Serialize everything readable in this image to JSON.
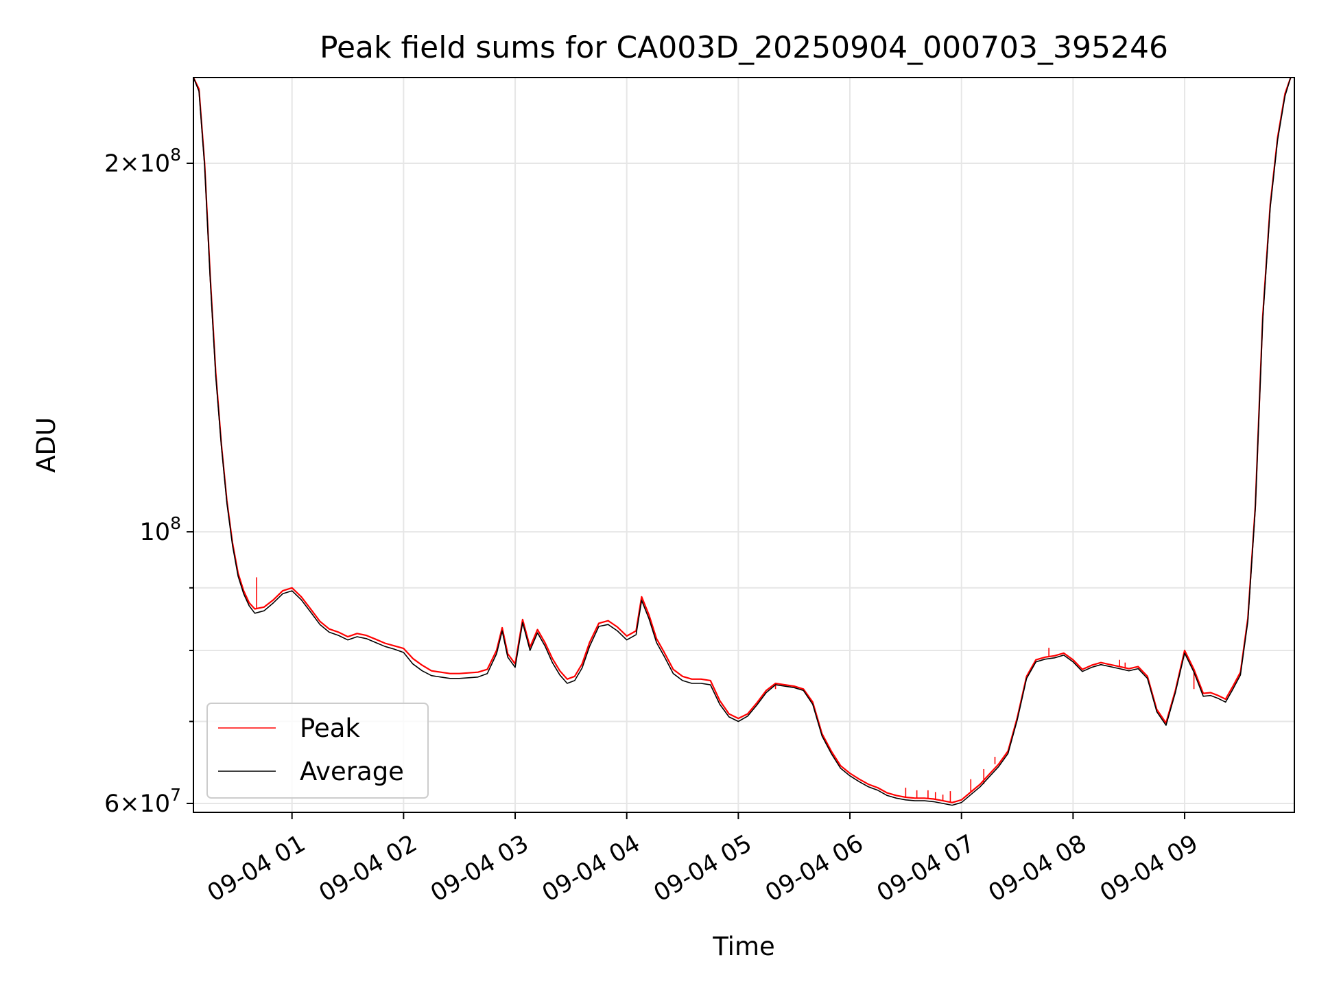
{
  "chart_data": {
    "type": "line",
    "title": "Peak field sums for CA003D_20250904_000703_395246",
    "xlabel": "Time",
    "ylabel": "ADU",
    "x_axis": {
      "type": "time",
      "range": [
        "2025-09-04 00:07",
        "2025-09-04 09:59"
      ],
      "ticks": [
        {
          "value": "2025-09-04 01:00",
          "label": "09-04 01"
        },
        {
          "value": "2025-09-04 02:00",
          "label": "09-04 02"
        },
        {
          "value": "2025-09-04 03:00",
          "label": "09-04 03"
        },
        {
          "value": "2025-09-04 04:00",
          "label": "09-04 04"
        },
        {
          "value": "2025-09-04 05:00",
          "label": "09-04 05"
        },
        {
          "value": "2025-09-04 06:00",
          "label": "09-04 06"
        },
        {
          "value": "2025-09-04 07:00",
          "label": "09-04 07"
        },
        {
          "value": "2025-09-04 08:00",
          "label": "09-04 08"
        },
        {
          "value": "2025-09-04 09:00",
          "label": "09-04 09"
        }
      ]
    },
    "y_axis": {
      "scale": "log",
      "range": [
        59000000,
        235000000
      ],
      "major_ticks": [
        {
          "value": 60000000,
          "label_mantissa": "6",
          "label_exponent": "7"
        },
        {
          "value": 100000000,
          "label_mantissa": "",
          "label_exponent": "8"
        },
        {
          "value": 200000000,
          "label_mantissa": "2",
          "label_exponent": "8"
        }
      ],
      "minor_ticks": [
        70000000,
        80000000,
        90000000
      ]
    },
    "grid": true,
    "legend_position": "lower-left",
    "series": [
      {
        "name": "Peak",
        "color": "#ff0000",
        "x": [
          "2025-09-04 00:07",
          "2025-09-04 00:10",
          "2025-09-04 00:13",
          "2025-09-04 00:16",
          "2025-09-04 00:19",
          "2025-09-04 00:22",
          "2025-09-04 00:25",
          "2025-09-04 00:28",
          "2025-09-04 00:31",
          "2025-09-04 00:34",
          "2025-09-04 00:37",
          "2025-09-04 00:40",
          "2025-09-04 00:45",
          "2025-09-04 00:50",
          "2025-09-04 00:55",
          "2025-09-04 01:00",
          "2025-09-04 01:05",
          "2025-09-04 01:10",
          "2025-09-04 01:15",
          "2025-09-04 01:20",
          "2025-09-04 01:25",
          "2025-09-04 01:30",
          "2025-09-04 01:35",
          "2025-09-04 01:40",
          "2025-09-04 01:45",
          "2025-09-04 01:50",
          "2025-09-04 01:55",
          "2025-09-04 02:00",
          "2025-09-04 02:05",
          "2025-09-04 02:10",
          "2025-09-04 02:15",
          "2025-09-04 02:20",
          "2025-09-04 02:25",
          "2025-09-04 02:30",
          "2025-09-04 02:35",
          "2025-09-04 02:40",
          "2025-09-04 02:45",
          "2025-09-04 02:50",
          "2025-09-04 02:53",
          "2025-09-04 02:56",
          "2025-09-04 03:00",
          "2025-09-04 03:04",
          "2025-09-04 03:08",
          "2025-09-04 03:12",
          "2025-09-04 03:16",
          "2025-09-04 03:20",
          "2025-09-04 03:24",
          "2025-09-04 03:28",
          "2025-09-04 03:32",
          "2025-09-04 03:36",
          "2025-09-04 03:40",
          "2025-09-04 03:45",
          "2025-09-04 03:50",
          "2025-09-04 03:55",
          "2025-09-04 04:00",
          "2025-09-04 04:05",
          "2025-09-04 04:08",
          "2025-09-04 04:12",
          "2025-09-04 04:16",
          "2025-09-04 04:20",
          "2025-09-04 04:25",
          "2025-09-04 04:30",
          "2025-09-04 04:35",
          "2025-09-04 04:40",
          "2025-09-04 04:45",
          "2025-09-04 04:50",
          "2025-09-04 04:55",
          "2025-09-04 05:00",
          "2025-09-04 05:05",
          "2025-09-04 05:10",
          "2025-09-04 05:15",
          "2025-09-04 05:20",
          "2025-09-04 05:25",
          "2025-09-04 05:30",
          "2025-09-04 05:35",
          "2025-09-04 05:40",
          "2025-09-04 05:45",
          "2025-09-04 05:50",
          "2025-09-04 05:55",
          "2025-09-04 06:00",
          "2025-09-04 06:05",
          "2025-09-04 06:10",
          "2025-09-04 06:15",
          "2025-09-04 06:20",
          "2025-09-04 06:25",
          "2025-09-04 06:30",
          "2025-09-04 06:35",
          "2025-09-04 06:40",
          "2025-09-04 06:45",
          "2025-09-04 06:50",
          "2025-09-04 06:55",
          "2025-09-04 07:00",
          "2025-09-04 07:05",
          "2025-09-04 07:10",
          "2025-09-04 07:15",
          "2025-09-04 07:20",
          "2025-09-04 07:25",
          "2025-09-04 07:30",
          "2025-09-04 07:35",
          "2025-09-04 07:40",
          "2025-09-04 07:45",
          "2025-09-04 07:50",
          "2025-09-04 07:55",
          "2025-09-04 08:00",
          "2025-09-04 08:05",
          "2025-09-04 08:10",
          "2025-09-04 08:15",
          "2025-09-04 08:20",
          "2025-09-04 08:25",
          "2025-09-04 08:30",
          "2025-09-04 08:35",
          "2025-09-04 08:40",
          "2025-09-04 08:45",
          "2025-09-04 08:50",
          "2025-09-04 08:55",
          "2025-09-04 09:00",
          "2025-09-04 09:05",
          "2025-09-04 09:10",
          "2025-09-04 09:14",
          "2025-09-04 09:18",
          "2025-09-04 09:22",
          "2025-09-04 09:26",
          "2025-09-04 09:30",
          "2025-09-04 09:34",
          "2025-09-04 09:38",
          "2025-09-04 09:42",
          "2025-09-04 09:46",
          "2025-09-04 09:50",
          "2025-09-04 09:54",
          "2025-09-04 09:57"
        ],
        "values": [
          235000000,
          230000000,
          200000000,
          162000000,
          135000000,
          118000000,
          106000000,
          98000000,
          92500000,
          89500000,
          87500000,
          86500000,
          86800000,
          88000000,
          89500000,
          90000000,
          88500000,
          86500000,
          84500000,
          83300000,
          82800000,
          82100000,
          82600000,
          82300000,
          81700000,
          81100000,
          80700000,
          80300000,
          78800000,
          77800000,
          77000000,
          76800000,
          76600000,
          76600000,
          76700000,
          76800000,
          77200000,
          80000000,
          83500000,
          79500000,
          78000000,
          84800000,
          80500000,
          83200000,
          81200000,
          78800000,
          77000000,
          75800000,
          76200000,
          78000000,
          81200000,
          84200000,
          84600000,
          83600000,
          82200000,
          83000000,
          88500000,
          85500000,
          81800000,
          79800000,
          77200000,
          76200000,
          75800000,
          75800000,
          75600000,
          72800000,
          71000000,
          70400000,
          71000000,
          72500000,
          74200000,
          75200000,
          75000000,
          74800000,
          74400000,
          72600000,
          68400000,
          66200000,
          64400000,
          63500000,
          62800000,
          62200000,
          61800000,
          61200000,
          60900000,
          60700000,
          60600000,
          60600000,
          60500000,
          60300000,
          60100000,
          60400000,
          61300000,
          62200000,
          63400000,
          64600000,
          66200000,
          70500000,
          76200000,
          78600000,
          79000000,
          79200000,
          79600000,
          78600000,
          77200000,
          77800000,
          78200000,
          77900000,
          77600000,
          77300000,
          77600000,
          76200000,
          71600000,
          69800000,
          74200000,
          80000000,
          77200000,
          73800000,
          73900000,
          73500000,
          73000000,
          74800000,
          76800000,
          85000000,
          105000000,
          150000000,
          185000000,
          210000000,
          228000000,
          235000000
        ],
        "spikes": [
          {
            "x": "2025-09-04 00:41",
            "value": 91800000
          },
          {
            "x": "2025-09-04 05:20",
            "value": 74500000
          },
          {
            "x": "2025-09-04 06:30",
            "value": 61800000
          },
          {
            "x": "2025-09-04 06:36",
            "value": 61500000
          },
          {
            "x": "2025-09-04 06:42",
            "value": 61500000
          },
          {
            "x": "2025-09-04 06:46",
            "value": 61300000
          },
          {
            "x": "2025-09-04 06:50",
            "value": 61000000
          },
          {
            "x": "2025-09-04 06:54",
            "value": 61400000
          },
          {
            "x": "2025-09-04 07:05",
            "value": 62800000
          },
          {
            "x": "2025-09-04 07:12",
            "value": 64000000
          },
          {
            "x": "2025-09-04 07:18",
            "value": 65500000
          },
          {
            "x": "2025-09-04 07:47",
            "value": 80400000
          },
          {
            "x": "2025-09-04 08:25",
            "value": 78600000
          },
          {
            "x": "2025-09-04 08:28",
            "value": 78200000
          },
          {
            "x": "2025-09-04 09:05",
            "value": 74500000
          }
        ]
      },
      {
        "name": "Average",
        "color": "#000000",
        "x": [
          "2025-09-04 00:07",
          "2025-09-04 00:10",
          "2025-09-04 00:13",
          "2025-09-04 00:16",
          "2025-09-04 00:19",
          "2025-09-04 00:22",
          "2025-09-04 00:25",
          "2025-09-04 00:28",
          "2025-09-04 00:31",
          "2025-09-04 00:34",
          "2025-09-04 00:37",
          "2025-09-04 00:40",
          "2025-09-04 00:45",
          "2025-09-04 00:50",
          "2025-09-04 00:55",
          "2025-09-04 01:00",
          "2025-09-04 01:05",
          "2025-09-04 01:10",
          "2025-09-04 01:15",
          "2025-09-04 01:20",
          "2025-09-04 01:25",
          "2025-09-04 01:30",
          "2025-09-04 01:35",
          "2025-09-04 01:40",
          "2025-09-04 01:45",
          "2025-09-04 01:50",
          "2025-09-04 01:55",
          "2025-09-04 02:00",
          "2025-09-04 02:05",
          "2025-09-04 02:10",
          "2025-09-04 02:15",
          "2025-09-04 02:20",
          "2025-09-04 02:25",
          "2025-09-04 02:30",
          "2025-09-04 02:35",
          "2025-09-04 02:40",
          "2025-09-04 02:45",
          "2025-09-04 02:50",
          "2025-09-04 02:53",
          "2025-09-04 02:56",
          "2025-09-04 03:00",
          "2025-09-04 03:04",
          "2025-09-04 03:08",
          "2025-09-04 03:12",
          "2025-09-04 03:16",
          "2025-09-04 03:20",
          "2025-09-04 03:24",
          "2025-09-04 03:28",
          "2025-09-04 03:32",
          "2025-09-04 03:36",
          "2025-09-04 03:40",
          "2025-09-04 03:45",
          "2025-09-04 03:50",
          "2025-09-04 03:55",
          "2025-09-04 04:00",
          "2025-09-04 04:05",
          "2025-09-04 04:08",
          "2025-09-04 04:12",
          "2025-09-04 04:16",
          "2025-09-04 04:20",
          "2025-09-04 04:25",
          "2025-09-04 04:30",
          "2025-09-04 04:35",
          "2025-09-04 04:40",
          "2025-09-04 04:45",
          "2025-09-04 04:50",
          "2025-09-04 04:55",
          "2025-09-04 05:00",
          "2025-09-04 05:05",
          "2025-09-04 05:10",
          "2025-09-04 05:15",
          "2025-09-04 05:20",
          "2025-09-04 05:25",
          "2025-09-04 05:30",
          "2025-09-04 05:35",
          "2025-09-04 05:40",
          "2025-09-04 05:45",
          "2025-09-04 05:50",
          "2025-09-04 05:55",
          "2025-09-04 06:00",
          "2025-09-04 06:05",
          "2025-09-04 06:10",
          "2025-09-04 06:15",
          "2025-09-04 06:20",
          "2025-09-04 06:25",
          "2025-09-04 06:30",
          "2025-09-04 06:35",
          "2025-09-04 06:40",
          "2025-09-04 06:45",
          "2025-09-04 06:50",
          "2025-09-04 06:55",
          "2025-09-04 07:00",
          "2025-09-04 07:05",
          "2025-09-04 07:10",
          "2025-09-04 07:15",
          "2025-09-04 07:20",
          "2025-09-04 07:25",
          "2025-09-04 07:30",
          "2025-09-04 07:35",
          "2025-09-04 07:40",
          "2025-09-04 07:45",
          "2025-09-04 07:50",
          "2025-09-04 07:55",
          "2025-09-04 08:00",
          "2025-09-04 08:05",
          "2025-09-04 08:10",
          "2025-09-04 08:15",
          "2025-09-04 08:20",
          "2025-09-04 08:25",
          "2025-09-04 08:30",
          "2025-09-04 08:35",
          "2025-09-04 08:40",
          "2025-09-04 08:45",
          "2025-09-04 08:50",
          "2025-09-04 08:55",
          "2025-09-04 09:00",
          "2025-09-04 09:05",
          "2025-09-04 09:10",
          "2025-09-04 09:14",
          "2025-09-04 09:18",
          "2025-09-04 09:22",
          "2025-09-04 09:26",
          "2025-09-04 09:30",
          "2025-09-04 09:34",
          "2025-09-04 09:38",
          "2025-09-04 09:42",
          "2025-09-04 09:46",
          "2025-09-04 09:50",
          "2025-09-04 09:54",
          "2025-09-04 09:57"
        ],
        "values": [
          235000000,
          229000000,
          199000000,
          161000000,
          134000000,
          117500000,
          105500000,
          97500000,
          92000000,
          89000000,
          87000000,
          85800000,
          86200000,
          87500000,
          89000000,
          89500000,
          88000000,
          86000000,
          84000000,
          82800000,
          82300000,
          81600000,
          82100000,
          81800000,
          81200000,
          80600000,
          80200000,
          79700000,
          78000000,
          77000000,
          76300000,
          76100000,
          75900000,
          75900000,
          76000000,
          76100000,
          76600000,
          79500000,
          83000000,
          79000000,
          77500000,
          84300000,
          80000000,
          82700000,
          80700000,
          78200000,
          76400000,
          75200000,
          75600000,
          77400000,
          80600000,
          83700000,
          84000000,
          83000000,
          81600000,
          82400000,
          87900000,
          84900000,
          81200000,
          79200000,
          76600000,
          75600000,
          75200000,
          75200000,
          75000000,
          72300000,
          70600000,
          70000000,
          70700000,
          72200000,
          73900000,
          75000000,
          74800000,
          74600000,
          74200000,
          72300000,
          68100000,
          65900000,
          64100000,
          63200000,
          62500000,
          61900000,
          61500000,
          60900000,
          60600000,
          60400000,
          60300000,
          60300000,
          60200000,
          60000000,
          59800000,
          60100000,
          61000000,
          61900000,
          63100000,
          64300000,
          65900000,
          70200000,
          75900000,
          78300000,
          78700000,
          78900000,
          79300000,
          78300000,
          76900000,
          77500000,
          77900000,
          77600000,
          77300000,
          77000000,
          77300000,
          75900000,
          71300000,
          69500000,
          73900000,
          79600000,
          76800000,
          73400000,
          73500000,
          73100000,
          72600000,
          74400000,
          76400000,
          84500000,
          104500000,
          149000000,
          184000000,
          209000000,
          227000000,
          235000000
        ]
      }
    ]
  }
}
